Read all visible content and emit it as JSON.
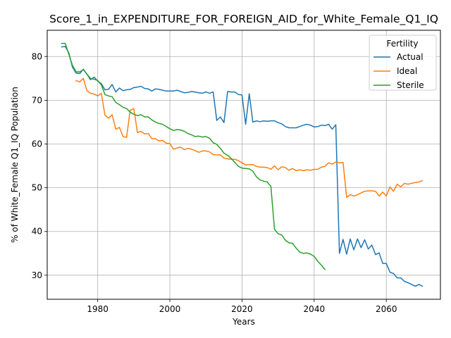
{
  "chart_data": {
    "type": "line",
    "title": "Score_1_in_EXPENDITURE_FOR_FOREIGN_AID_for_White_Female_Q1_IQ",
    "xlabel": "Years",
    "ylabel": "% of White_Female Q1_IQ Population",
    "xlim": [
      1966,
      2075
    ],
    "ylim": [
      24.5,
      86
    ],
    "x_ticks": [
      1980,
      2000,
      2020,
      2040,
      2060
    ],
    "y_ticks": [
      30,
      40,
      50,
      60,
      70,
      80
    ],
    "grid": true,
    "legend": {
      "title": "Fertility",
      "placement": "top-right"
    },
    "series": [
      {
        "name": "Actual",
        "color": "#1f77b4",
        "x": [
          1970,
          1971,
          1972,
          1973,
          1974,
          1975,
          1976,
          1977,
          1978,
          1979,
          1980,
          1981,
          1982,
          1983,
          1984,
          1985,
          1986,
          1987,
          1988,
          1989,
          1990,
          1991,
          1992,
          1993,
          1994,
          1995,
          1996,
          1997,
          1998,
          1999,
          2000,
          2001,
          2002,
          2003,
          2004,
          2005,
          2006,
          2007,
          2008,
          2009,
          2010,
          2011,
          2012,
          2013,
          2014,
          2015,
          2016,
          2017,
          2018,
          2019,
          2020,
          2021,
          2022,
          2023,
          2024,
          2025,
          2026,
          2027,
          2028,
          2029,
          2030,
          2031,
          2032,
          2033,
          2034,
          2035,
          2036,
          2037,
          2038,
          2039,
          2040,
          2041,
          2042,
          2043,
          2044,
          2045,
          2046,
          2047,
          2048,
          2049,
          2050,
          2051,
          2052,
          2053,
          2054,
          2055,
          2056,
          2057,
          2058,
          2059,
          2060,
          2061,
          2062,
          2063,
          2064,
          2065,
          2066,
          2067,
          2068,
          2069,
          2070
        ],
        "values": [
          82.2,
          82.3,
          80.8,
          77.6,
          76.2,
          76.1,
          77.1,
          76.0,
          74.7,
          75.3,
          74.4,
          73.8,
          72.4,
          72.5,
          73.6,
          71.9,
          72.8,
          72.2,
          72.4,
          72.5,
          72.9,
          73.0,
          73.2,
          72.7,
          72.6,
          72.1,
          72.6,
          72.5,
          72.3,
          72.1,
          72.1,
          72.1,
          72.3,
          72.0,
          71.7,
          71.8,
          72.0,
          71.9,
          71.7,
          71.6,
          71.9,
          71.6,
          71.9,
          65.4,
          66.2,
          64.9,
          72.0,
          71.9,
          71.9,
          71.3,
          71.2,
          64.5,
          71.5,
          65.0,
          65.3,
          65.1,
          65.3,
          65.2,
          65.3,
          65.3,
          64.9,
          64.6,
          64.0,
          63.7,
          63.7,
          63.7,
          64.0,
          64.3,
          64.5,
          64.3,
          63.9,
          64.0,
          64.3,
          64.2,
          64.5,
          63.4,
          64.4,
          35.0,
          38.2,
          34.8,
          38.3,
          35.8,
          38.3,
          36.3,
          38.1,
          36.0,
          36.9,
          34.7,
          35.1,
          32.7,
          32.7,
          30.7,
          30.4,
          29.4,
          29.4,
          28.6,
          28.3,
          27.9,
          27.5,
          27.9,
          27.5
        ]
      },
      {
        "name": "Ideal",
        "color": "#ff7f0e",
        "x": [
          1974,
          1975,
          1976,
          1977,
          1978,
          1979,
          1980,
          1981,
          1982,
          1983,
          1984,
          1985,
          1986,
          1987,
          1988,
          1989,
          1990,
          1991,
          1992,
          1993,
          1994,
          1995,
          1996,
          1997,
          1998,
          1999,
          2000,
          2001,
          2002,
          2003,
          2004,
          2005,
          2006,
          2007,
          2008,
          2009,
          2010,
          2011,
          2012,
          2013,
          2014,
          2015,
          2016,
          2017,
          2018,
          2019,
          2020,
          2021,
          2022,
          2023,
          2024,
          2025,
          2026,
          2027,
          2028,
          2029,
          2030,
          2031,
          2032,
          2033,
          2034,
          2035,
          2036,
          2037,
          2038,
          2039,
          2040,
          2041,
          2042,
          2043,
          2044,
          2045,
          2046,
          2047,
          2048,
          2049,
          2050,
          2051,
          2052,
          2053,
          2054,
          2055,
          2056,
          2057,
          2058,
          2059,
          2060,
          2061,
          2062,
          2063,
          2064,
          2065,
          2066,
          2067,
          2068,
          2069,
          2070
        ],
        "values": [
          74.5,
          74.2,
          75.0,
          72.2,
          71.6,
          71.4,
          71.0,
          71.6,
          66.6,
          65.9,
          66.7,
          63.4,
          63.8,
          61.7,
          61.5,
          67.7,
          68.1,
          62.6,
          62.9,
          62.3,
          62.4,
          61.2,
          61.2,
          60.7,
          60.8,
          60.2,
          60.1,
          58.8,
          59.1,
          59.3,
          58.7,
          59.0,
          58.8,
          58.5,
          58.1,
          58.4,
          58.4,
          58.2,
          57.6,
          57.5,
          57.5,
          56.8,
          56.6,
          56.5,
          56.5,
          56.2,
          55.7,
          55.2,
          55.3,
          55.3,
          54.9,
          54.7,
          54.7,
          54.6,
          54.2,
          55.0,
          54.1,
          54.8,
          54.6,
          54.0,
          54.4,
          53.9,
          54.1,
          53.9,
          54.1,
          54.0,
          54.2,
          54.2,
          54.7,
          54.9,
          55.7,
          55.4,
          55.9,
          55.7,
          55.8,
          47.8,
          48.4,
          48.1,
          48.4,
          48.8,
          49.2,
          49.3,
          49.3,
          49.2,
          48.1,
          49.0,
          48.1,
          50.2,
          49.2,
          50.8,
          50.2,
          51.0,
          50.8,
          51.0,
          51.2,
          51.3,
          51.6
        ]
      },
      {
        "name": "Sterile",
        "color": "#2ca02c",
        "x": [
          1970,
          1971,
          1972,
          1973,
          1974,
          1975,
          1976,
          1977,
          1978,
          1979,
          1980,
          1981,
          1982,
          1983,
          1984,
          1985,
          1986,
          1987,
          1988,
          1989,
          1990,
          1991,
          1992,
          1993,
          1994,
          1995,
          1996,
          1997,
          1998,
          1999,
          2000,
          2001,
          2002,
          2003,
          2004,
          2005,
          2006,
          2007,
          2008,
          2009,
          2010,
          2011,
          2012,
          2013,
          2014,
          2015,
          2016,
          2017,
          2018,
          2019,
          2020,
          2021,
          2022,
          2023,
          2024,
          2025,
          2026,
          2027,
          2028,
          2029,
          2030,
          2031,
          2032,
          2033,
          2034,
          2035,
          2036,
          2037,
          2038,
          2039,
          2040,
          2041,
          2042,
          2043
        ],
        "values": [
          83.0,
          83.0,
          80.5,
          78.0,
          76.5,
          76.5,
          77.0,
          76.0,
          75.0,
          74.8,
          74.5,
          73.5,
          71.3,
          71.0,
          70.8,
          69.5,
          69.0,
          68.4,
          68.1,
          67.3,
          66.8,
          66.5,
          66.7,
          66.2,
          66.2,
          65.5,
          65.0,
          64.7,
          64.5,
          64.0,
          63.5,
          63.1,
          63.3,
          63.2,
          62.9,
          62.4,
          62.1,
          61.7,
          61.8,
          61.6,
          61.7,
          61.3,
          60.3,
          59.9,
          59.0,
          57.9,
          57.4,
          56.7,
          55.8,
          54.9,
          54.5,
          54.4,
          54.3,
          53.8,
          52.5,
          51.8,
          51.5,
          51.3,
          50.3,
          40.5,
          39.5,
          39.2,
          38.0,
          37.4,
          37.3,
          36.2,
          35.3,
          35.0,
          35.1,
          34.8,
          34.3,
          33.2,
          32.3,
          31.3
        ]
      }
    ]
  }
}
